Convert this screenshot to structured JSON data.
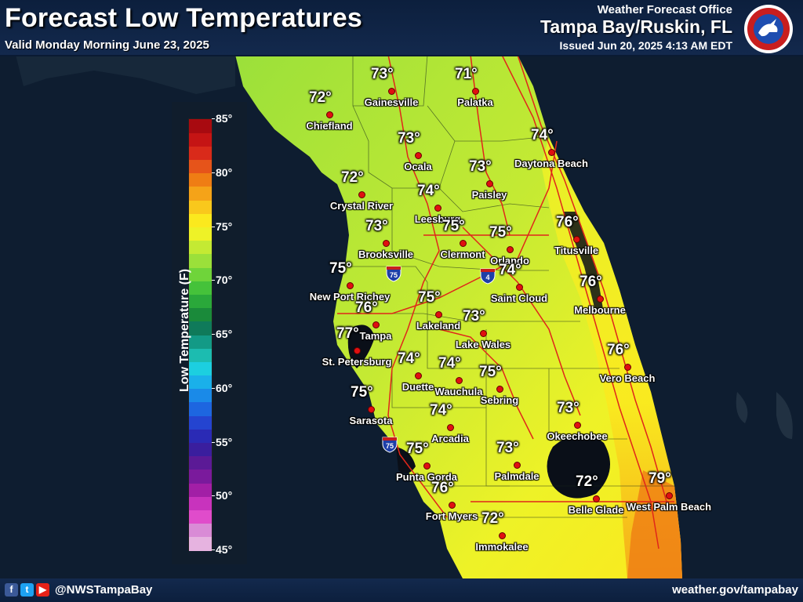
{
  "header": {
    "title": "Forecast Low Temperatures",
    "valid": "Valid Monday Morning June 23, 2025",
    "office_label": "Weather Forecast Office",
    "office_name": "Tampa Bay/Ruskin, FL",
    "issued": "Issued Jun 20, 2025 4:13 AM EDT",
    "logo_text": "NATIONAL WEATHER SERVICE"
  },
  "footer": {
    "social_icons": [
      "facebook-icon",
      "twitter-icon",
      "youtube-icon"
    ],
    "handle": "@NWSTampaBay",
    "website": "weather.gov/tampabay"
  },
  "legend": {
    "title": "Low Temperature (F)",
    "min": 45,
    "max": 85,
    "ticks": [
      "85°",
      "80°",
      "75°",
      "70°",
      "65°",
      "60°",
      "55°",
      "50°",
      "45°"
    ],
    "colors": [
      "#e6b3e0",
      "#d98bd6",
      "#e04ccb",
      "#c833bd",
      "#a21fa6",
      "#7a1a9c",
      "#5b1a96",
      "#3a1e9e",
      "#2a2ab5",
      "#2444d0",
      "#1d66e0",
      "#1a8ae8",
      "#1ab0ea",
      "#1ccfe0",
      "#1cbcb0",
      "#139a86",
      "#0f7a5a",
      "#1a8a3a",
      "#2aa83a",
      "#45c23a",
      "#6fd43a",
      "#9be03a",
      "#c4ea33",
      "#eef227",
      "#fbe91e",
      "#f9c81c",
      "#f5a318",
      "#ef7d14",
      "#e6541a",
      "#d92a1a",
      "#c51414",
      "#a80a10"
    ]
  },
  "shields": [
    "75",
    "4",
    "75"
  ],
  "cities": [
    {
      "name": "Gainesville",
      "temp": "73°"
    },
    {
      "name": "Palatka",
      "temp": "71°"
    },
    {
      "name": "Chiefland",
      "temp": "72°"
    },
    {
      "name": "Ocala",
      "temp": "73°"
    },
    {
      "name": "Daytona Beach",
      "temp": "74°"
    },
    {
      "name": "Paisley",
      "temp": "73°"
    },
    {
      "name": "Crystal River",
      "temp": "72°"
    },
    {
      "name": "Leesburg",
      "temp": "74°"
    },
    {
      "name": "Clermont",
      "temp": "75°"
    },
    {
      "name": "Orlando",
      "temp": "75°"
    },
    {
      "name": "Titusville",
      "temp": "76°"
    },
    {
      "name": "Brooksville",
      "temp": "73°"
    },
    {
      "name": "New Port Richey",
      "temp": "75°"
    },
    {
      "name": "Saint Cloud",
      "temp": "74°"
    },
    {
      "name": "Melbourne",
      "temp": "76°"
    },
    {
      "name": "Lakeland",
      "temp": "75°"
    },
    {
      "name": "Tampa",
      "temp": "76°"
    },
    {
      "name": "Lake Wales",
      "temp": "73°"
    },
    {
      "name": "St. Petersburg",
      "temp": "77°"
    },
    {
      "name": "Duette",
      "temp": "74°"
    },
    {
      "name": "Wauchula",
      "temp": "74°"
    },
    {
      "name": "Sebring",
      "temp": "75°"
    },
    {
      "name": "Vero Beach",
      "temp": "76°"
    },
    {
      "name": "Sarasota",
      "temp": "75°"
    },
    {
      "name": "Arcadia",
      "temp": "74°"
    },
    {
      "name": "Okeechobee",
      "temp": "73°"
    },
    {
      "name": "Punta Gorda",
      "temp": "75°"
    },
    {
      "name": "Palmdale",
      "temp": "73°"
    },
    {
      "name": "Fort Myers",
      "temp": "76°"
    },
    {
      "name": "Belle Glade",
      "temp": "72°"
    },
    {
      "name": "West Palm Beach",
      "temp": "79°"
    },
    {
      "name": "Immokalee",
      "temp": "72°"
    }
  ],
  "colors": {
    "background": "#0d1a2b",
    "land_cool": "#9be03a",
    "land_warm": "#fbe91e",
    "coast_hot": "#f5a318",
    "roads": "#e0261a",
    "dot": "#e01010"
  }
}
